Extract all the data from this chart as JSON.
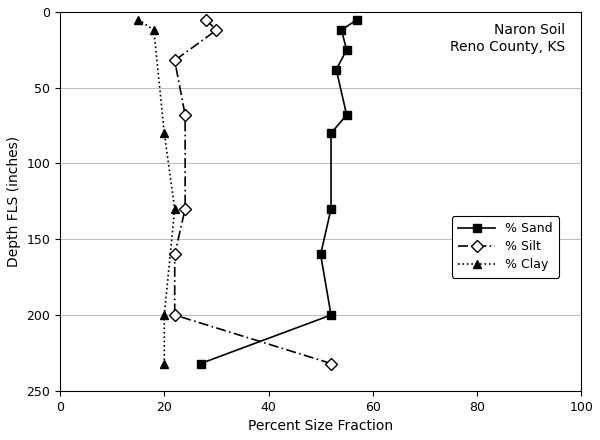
{
  "title": "Naron Soil\nReno County, KS",
  "xlabel": "Percent Size Fraction",
  "ylabel": "Depth FLS (inches)",
  "xlim": [
    0,
    100
  ],
  "ylim": [
    250,
    0
  ],
  "xticks": [
    0,
    20,
    40,
    60,
    80,
    100
  ],
  "yticks": [
    0,
    50,
    100,
    150,
    200,
    250
  ],
  "sand_depth": [
    5,
    12,
    25,
    38,
    68,
    80,
    130,
    160,
    200,
    232
  ],
  "sand_pct": [
    57,
    54,
    55,
    53,
    55,
    52,
    52,
    50,
    52,
    27
  ],
  "silt_depth": [
    5,
    12,
    32,
    68,
    130,
    160,
    200,
    232
  ],
  "silt_pct": [
    28,
    30,
    22,
    24,
    24,
    22,
    22,
    52
  ],
  "clay_depth": [
    5,
    12,
    80,
    130,
    200,
    232
  ],
  "clay_pct": [
    15,
    18,
    20,
    22,
    20,
    20
  ],
  "line_color": "#000000",
  "bg_color": "#ffffff",
  "grid_color": "#bbbbbb",
  "title_fontsize": 10,
  "label_fontsize": 10,
  "tick_fontsize": 9,
  "legend_fontsize": 9
}
